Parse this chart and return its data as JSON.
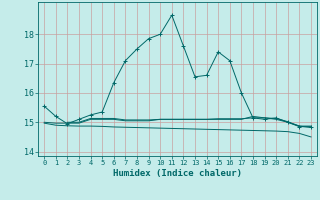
{
  "xlabel": "Humidex (Indice chaleur)",
  "bg_color": "#c5ecea",
  "grid_color": "#c8a0a0",
  "line_color": "#006868",
  "xlim": [
    -0.5,
    23.5
  ],
  "ylim": [
    13.85,
    19.1
  ],
  "yticks": [
    14,
    15,
    16,
    17,
    18
  ],
  "xticks": [
    0,
    1,
    2,
    3,
    4,
    5,
    6,
    7,
    8,
    9,
    10,
    11,
    12,
    13,
    14,
    15,
    16,
    17,
    18,
    19,
    20,
    21,
    22,
    23
  ],
  "line1_x": [
    0,
    1,
    2,
    3,
    4,
    5,
    6,
    7,
    8,
    9,
    10,
    11,
    12,
    13,
    14,
    15,
    16,
    17,
    18,
    19,
    20,
    21,
    22,
    23
  ],
  "line1_y": [
    15.55,
    15.2,
    14.95,
    15.1,
    15.25,
    15.35,
    16.35,
    17.1,
    17.5,
    17.85,
    18.0,
    18.65,
    17.6,
    16.55,
    16.6,
    17.4,
    17.1,
    16.0,
    15.15,
    15.1,
    15.15,
    15.0,
    14.85,
    14.85
  ],
  "line2_x": [
    0,
    1,
    2,
    3,
    4,
    5,
    6,
    7,
    8,
    9,
    10,
    11,
    12,
    13,
    14,
    15,
    16,
    17,
    18,
    19,
    20,
    21,
    22,
    23
  ],
  "line2_y": [
    15.0,
    14.97,
    14.97,
    14.97,
    15.1,
    15.1,
    15.1,
    15.05,
    15.05,
    15.05,
    15.1,
    15.1,
    15.1,
    15.1,
    15.1,
    15.12,
    15.12,
    15.12,
    15.15,
    15.15,
    15.1,
    15.0,
    14.87,
    14.87
  ],
  "line3_x": [
    0,
    1,
    2,
    3,
    4,
    5,
    6,
    7,
    8,
    9,
    10,
    11,
    12,
    13,
    14,
    15,
    16,
    17,
    18,
    19,
    20,
    21,
    22,
    23
  ],
  "line3_y": [
    14.97,
    14.9,
    14.88,
    14.87,
    14.87,
    14.86,
    14.84,
    14.83,
    14.82,
    14.81,
    14.8,
    14.79,
    14.78,
    14.77,
    14.76,
    14.75,
    14.74,
    14.73,
    14.72,
    14.71,
    14.7,
    14.68,
    14.62,
    14.5
  ],
  "line4_x": [
    2,
    3,
    4,
    5,
    6,
    7,
    8,
    9,
    10,
    11,
    12,
    13,
    14,
    15,
    16,
    17,
    18,
    19,
    20,
    21,
    22,
    23
  ],
  "line4_y": [
    15.0,
    15.0,
    15.13,
    15.13,
    15.13,
    15.08,
    15.08,
    15.08,
    15.1,
    15.1,
    15.1,
    15.1,
    15.1,
    15.1,
    15.1,
    15.1,
    15.2,
    15.15,
    15.13,
    15.02,
    14.87,
    14.82
  ]
}
